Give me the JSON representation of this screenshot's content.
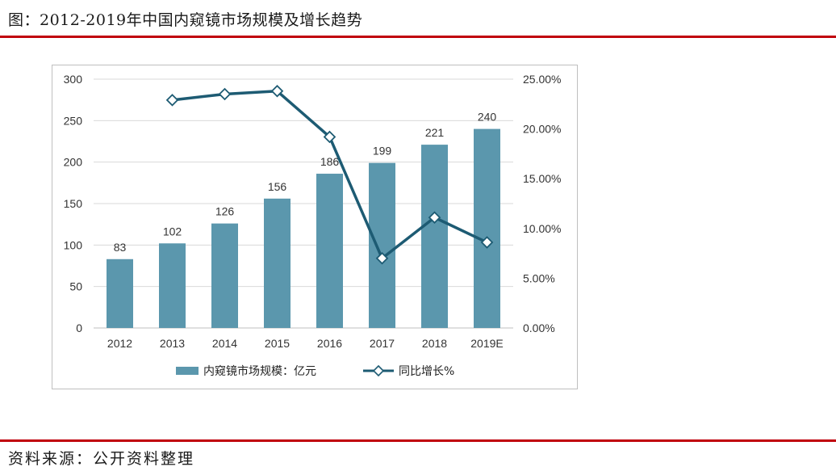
{
  "figure": {
    "title": "图：2012-2019年中国内窥镜市场规模及增长趋势",
    "source": "资料来源：公开资料整理"
  },
  "colors": {
    "bar": "#5b97ad",
    "line": "#1d5b73",
    "rule": "#c0000b",
    "grid": "#d9d9d9"
  },
  "chart_data": {
    "type": "bar",
    "categories": [
      "2012",
      "2013",
      "2014",
      "2015",
      "2016",
      "2017",
      "2018",
      "2019E"
    ],
    "series": [
      {
        "name": "内窥镜市场规模：亿元",
        "type": "bar",
        "axis": "left",
        "values": [
          83,
          102,
          126,
          156,
          186,
          199,
          221,
          240
        ],
        "labels": [
          "83",
          "102",
          "126",
          "156",
          "186",
          "199",
          "221",
          "240"
        ]
      },
      {
        "name": "同比增长%",
        "type": "line",
        "axis": "right",
        "values": [
          null,
          22.9,
          23.5,
          23.8,
          19.2,
          7.0,
          11.1,
          8.6
        ]
      }
    ],
    "y_left": {
      "min": 0,
      "max": 300,
      "ticks": [
        "0",
        "50",
        "100",
        "150",
        "200",
        "250",
        "300"
      ]
    },
    "y_right": {
      "min": 0,
      "max": 25,
      "ticks": [
        "0.00%",
        "5.00%",
        "10.00%",
        "15.00%",
        "20.00%",
        "25.00%"
      ]
    },
    "grid": true,
    "legend": "bottom"
  }
}
